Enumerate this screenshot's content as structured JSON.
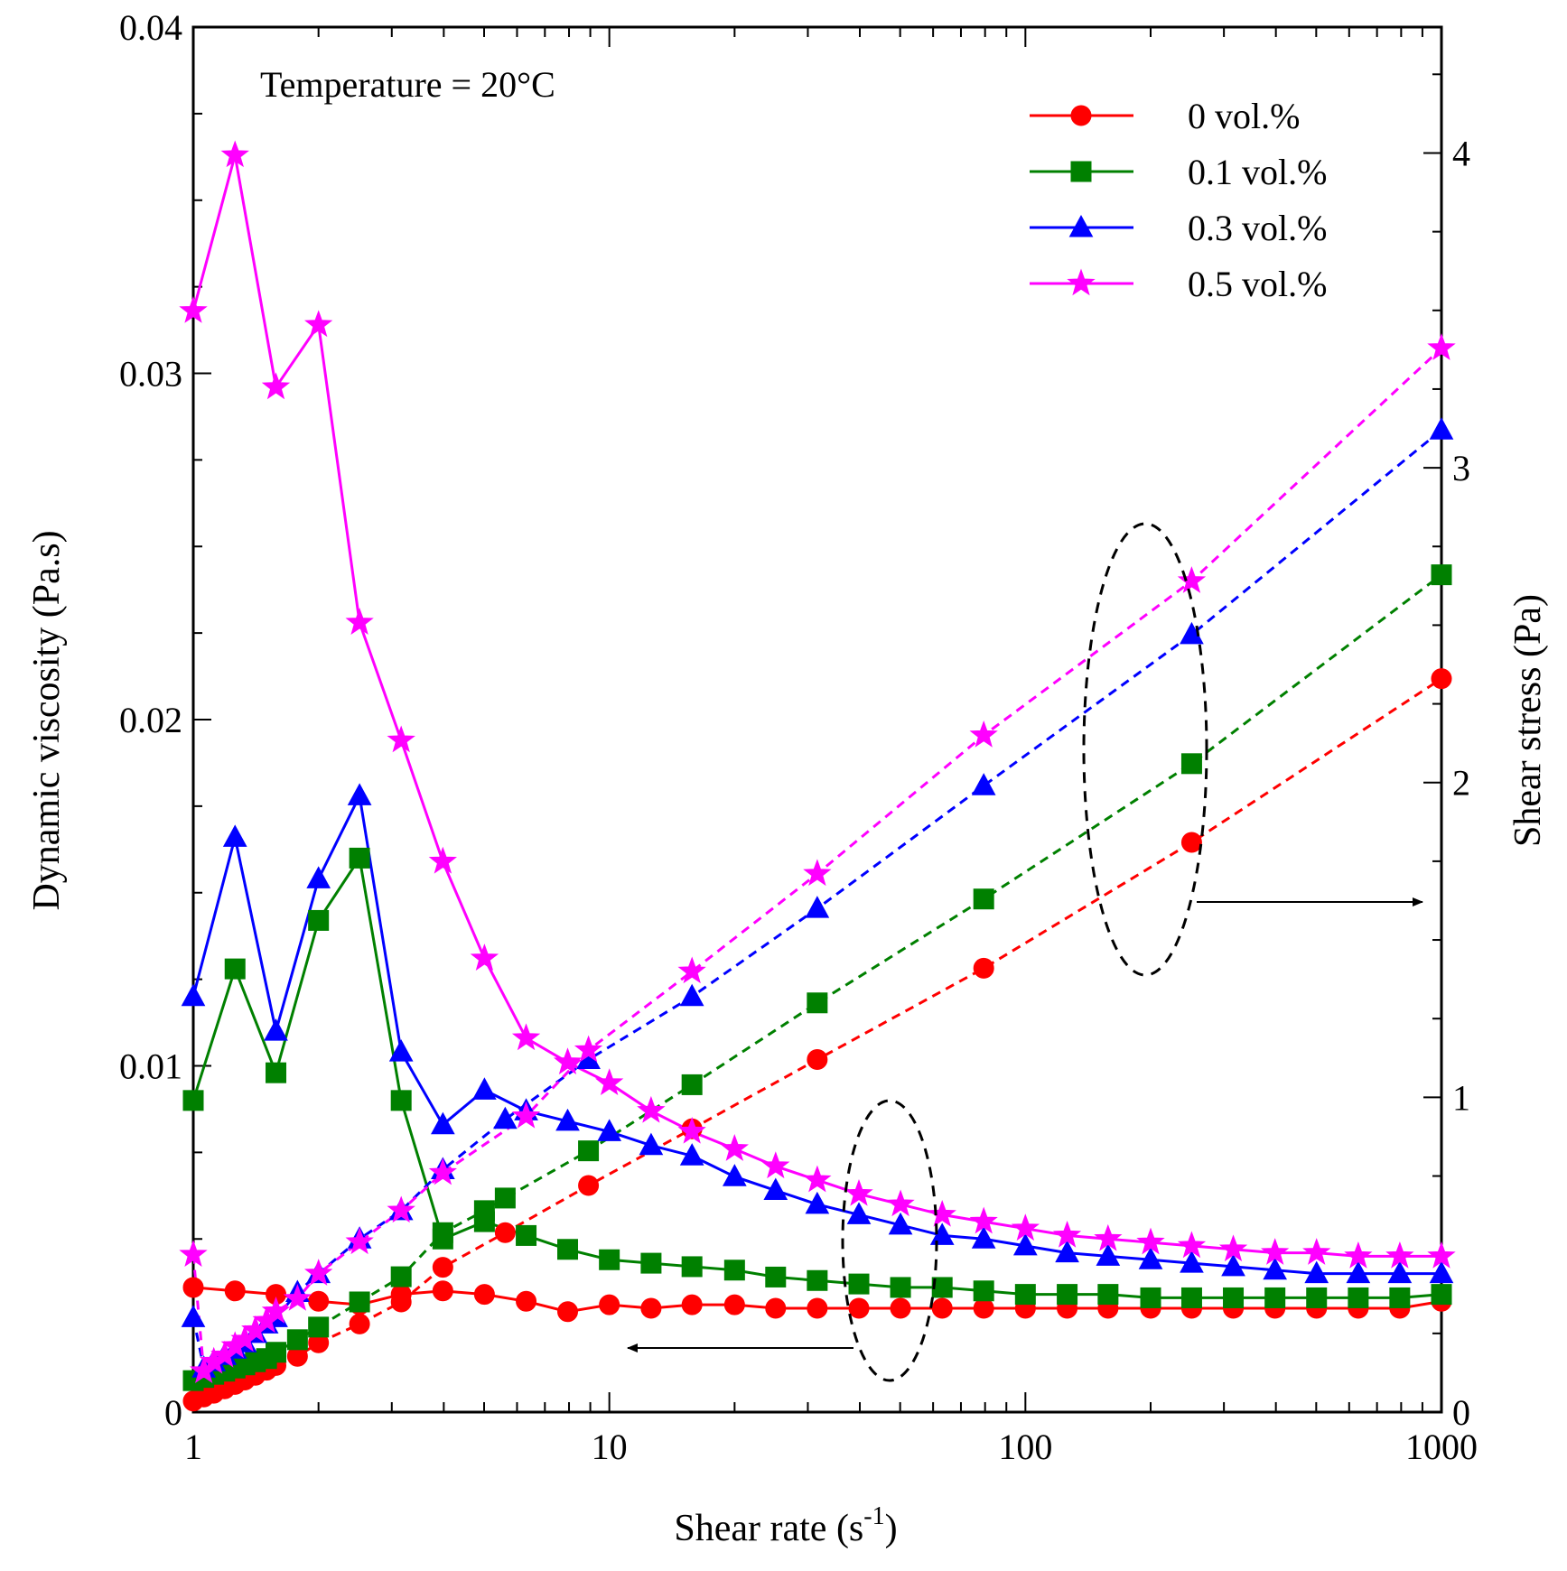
{
  "chart_data": {
    "type": "line",
    "annotation": "Temperature = 20°C",
    "xlabel": "Shear rate (s",
    "xlabel_sup": "-1",
    "xlabel_tail": ")",
    "ylabel_left": "Dynamic viscosity (Pa.s)",
    "ylabel_right": "Shear stress (Pa)",
    "x_scale": "log",
    "xlim": [
      1,
      1000
    ],
    "ylim_left": [
      0,
      0.04
    ],
    "ylim_right": [
      0,
      4.4
    ],
    "x_ticks": [
      {
        "value": 1,
        "label": "1"
      },
      {
        "value": 10,
        "label": "10"
      },
      {
        "value": 100,
        "label": "100"
      },
      {
        "value": 1000,
        "label": "1000"
      }
    ],
    "y_left_ticks": [
      {
        "value": 0,
        "label": "0"
      },
      {
        "value": 0.01,
        "label": "0.01"
      },
      {
        "value": 0.02,
        "label": "0.02"
      },
      {
        "value": 0.03,
        "label": "0.03"
      },
      {
        "value": 0.04,
        "label": "0.04"
      }
    ],
    "y_right_ticks": [
      {
        "value": 0,
        "label": "0"
      },
      {
        "value": 1,
        "label": "1"
      },
      {
        "value": 2,
        "label": "2"
      },
      {
        "value": 3,
        "label": "3"
      },
      {
        "value": 4,
        "label": "4"
      }
    ],
    "legend_position": "top-right",
    "series": [
      {
        "name": "0 vol.%",
        "color": "#ff0000",
        "marker": "circle",
        "viscosity": {
          "x": [
            1,
            1.26,
            1.58,
            2,
            2.51,
            3.16,
            3.98,
            5.01,
            6.31,
            7.94,
            10,
            12.6,
            15.8,
            20,
            25.1,
            31.6,
            39.8,
            50.1,
            63.1,
            79.4,
            100,
            126,
            158,
            200,
            251,
            316,
            398,
            501,
            631,
            794,
            1000
          ],
          "y": [
            0.0036,
            0.0035,
            0.0034,
            0.0032,
            0.0031,
            0.0034,
            0.0035,
            0.0034,
            0.0032,
            0.0029,
            0.0031,
            0.003,
            0.0031,
            0.0031,
            0.003,
            0.003,
            0.003,
            0.003,
            0.003,
            0.003,
            0.003,
            0.003,
            0.003,
            0.003,
            0.003,
            0.003,
            0.003,
            0.003,
            0.003,
            0.003,
            0.0032
          ]
        },
        "stress": {
          "x": [
            1,
            1.06,
            1.12,
            1.19,
            1.26,
            1.33,
            1.41,
            1.5,
            1.58,
            1.78,
            2,
            2.51,
            3.16,
            3.98,
            5.62,
            8.91,
            15.8,
            31.6,
            79.4,
            251,
            1000
          ],
          "y": [
            0.035,
            0.048,
            0.06,
            0.074,
            0.088,
            0.102,
            0.117,
            0.133,
            0.148,
            0.177,
            0.22,
            0.28,
            0.35,
            0.46,
            0.57,
            0.72,
            0.9,
            1.12,
            1.41,
            1.81,
            2.33
          ]
        }
      },
      {
        "name": "0.1 vol.%",
        "color": "#008000",
        "marker": "square",
        "viscosity": {
          "x": [
            1,
            1.26,
            1.58,
            2,
            2.51,
            3.16,
            3.98,
            5.01,
            6.31,
            7.94,
            10,
            12.6,
            15.8,
            20,
            25.1,
            31.6,
            39.8,
            50.1,
            63.1,
            79.4,
            100,
            126,
            158,
            200,
            251,
            316,
            398,
            501,
            631,
            794,
            1000
          ],
          "y": [
            0.009,
            0.0128,
            0.0098,
            0.0142,
            0.016,
            0.009,
            0.005,
            0.0055,
            0.0051,
            0.0047,
            0.0044,
            0.0043,
            0.0042,
            0.0041,
            0.0039,
            0.0038,
            0.0037,
            0.0036,
            0.0036,
            0.0035,
            0.0034,
            0.0034,
            0.0034,
            0.0033,
            0.0033,
            0.0033,
            0.0033,
            0.0033,
            0.0033,
            0.0033,
            0.0034
          ]
        },
        "stress": {
          "x": [
            1,
            1.06,
            1.12,
            1.19,
            1.26,
            1.33,
            1.41,
            1.5,
            1.58,
            1.78,
            2,
            2.51,
            3.16,
            3.98,
            5.01,
            5.62,
            8.91,
            15.8,
            31.6,
            79.4,
            251,
            1000
          ],
          "y": [
            0.1,
            0.11,
            0.12,
            0.13,
            0.14,
            0.15,
            0.16,
            0.17,
            0.19,
            0.23,
            0.27,
            0.35,
            0.43,
            0.57,
            0.64,
            0.68,
            0.83,
            1.04,
            1.3,
            1.63,
            2.06,
            2.66
          ]
        }
      },
      {
        "name": "0.3 vol.%",
        "color": "#0000ff",
        "marker": "triangle",
        "viscosity": {
          "x": [
            1,
            1.26,
            1.58,
            2,
            2.51,
            3.16,
            3.98,
            5.01,
            6.31,
            7.94,
            10,
            12.6,
            15.8,
            20,
            25.1,
            31.6,
            39.8,
            50.1,
            63.1,
            79.4,
            100,
            126,
            158,
            200,
            251,
            316,
            398,
            501,
            631,
            794,
            1000
          ],
          "y": [
            0.012,
            0.0166,
            0.011,
            0.0154,
            0.0178,
            0.0104,
            0.0083,
            0.0093,
            0.0087,
            0.0084,
            0.0081,
            0.0077,
            0.0074,
            0.0068,
            0.0064,
            0.006,
            0.0057,
            0.0054,
            0.0051,
            0.005,
            0.0048,
            0.0046,
            0.0045,
            0.0044,
            0.0043,
            0.0042,
            0.0041,
            0.004,
            0.004,
            0.004,
            0.004
          ]
        },
        "stress": {
          "x": [
            1,
            1.06,
            1.12,
            1.19,
            1.26,
            1.33,
            1.41,
            1.5,
            1.58,
            1.78,
            2,
            2.51,
            3.16,
            3.98,
            5.62,
            8.91,
            15.8,
            31.6,
            79.4,
            251,
            1000
          ],
          "y": [
            0.3,
            0.14,
            0.16,
            0.18,
            0.2,
            0.22,
            0.25,
            0.28,
            0.3,
            0.38,
            0.44,
            0.55,
            0.64,
            0.77,
            0.93,
            1.12,
            1.32,
            1.6,
            1.99,
            2.47,
            3.12
          ]
        }
      },
      {
        "name": "0.5 vol.%",
        "color": "#ff00ff",
        "marker": "star",
        "viscosity": {
          "x": [
            1,
            1.26,
            1.58,
            2,
            2.51,
            3.16,
            3.98,
            5.01,
            6.31,
            7.94,
            10,
            12.6,
            15.8,
            20,
            25.1,
            31.6,
            39.8,
            50.1,
            63.1,
            79.4,
            100,
            126,
            158,
            200,
            251,
            316,
            398,
            501,
            631,
            794,
            1000
          ],
          "y": [
            0.0318,
            0.0363,
            0.0296,
            0.0314,
            0.0228,
            0.0194,
            0.0159,
            0.0131,
            0.0108,
            0.0101,
            0.0095,
            0.0087,
            0.0081,
            0.0076,
            0.0071,
            0.0067,
            0.0063,
            0.006,
            0.0057,
            0.0055,
            0.0053,
            0.0051,
            0.005,
            0.0049,
            0.0048,
            0.0047,
            0.0046,
            0.0046,
            0.0045,
            0.0045,
            0.0045
          ]
        },
        "stress": {
          "x": [
            1,
            1.06,
            1.12,
            1.19,
            1.26,
            1.33,
            1.41,
            1.5,
            1.58,
            1.78,
            2,
            2.51,
            3.16,
            3.98,
            6.31,
            8.91,
            15.8,
            31.6,
            79.4,
            251,
            1000
          ],
          "y": [
            0.5,
            0.13,
            0.16,
            0.18,
            0.21,
            0.23,
            0.26,
            0.29,
            0.32,
            0.36,
            0.44,
            0.54,
            0.64,
            0.76,
            0.94,
            1.15,
            1.4,
            1.71,
            2.15,
            2.64,
            3.38
          ]
        }
      }
    ]
  }
}
